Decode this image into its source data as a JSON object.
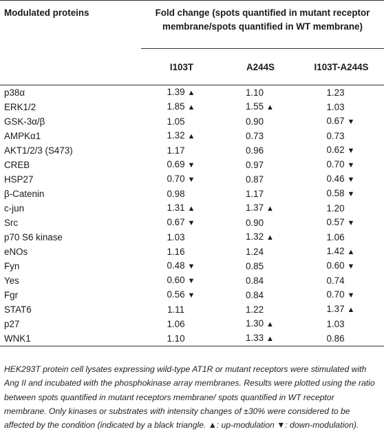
{
  "header": {
    "col0": "Modulated proteins",
    "group": "Fold change (spots quantified in mutant receptor membrane/spots quantified in WT membrane)",
    "sub": [
      "I103T",
      "A244S",
      "I103T-A244S"
    ]
  },
  "rows": [
    {
      "name": "p38α",
      "v": [
        "1.39",
        "1.10",
        "1.23"
      ],
      "m": [
        "up",
        "",
        ""
      ]
    },
    {
      "name": "ERK1/2",
      "v": [
        "1.85",
        "1.55",
        "1.03"
      ],
      "m": [
        "up",
        "up",
        ""
      ]
    },
    {
      "name": "GSK-3α/β",
      "v": [
        "1.05",
        "0.90",
        "0.67"
      ],
      "m": [
        "",
        "",
        "down"
      ]
    },
    {
      "name": "AMPKα1",
      "v": [
        "1.32",
        "0.73",
        "0.73"
      ],
      "m": [
        "up",
        "",
        ""
      ]
    },
    {
      "name": "AKT1/2/3 (S473)",
      "v": [
        "1.17",
        "0.96",
        "0.62"
      ],
      "m": [
        "",
        "",
        "down"
      ]
    },
    {
      "name": "CREB",
      "v": [
        "0.69",
        "0.97",
        "0.70"
      ],
      "m": [
        "down",
        "",
        "down"
      ]
    },
    {
      "name": "HSP27",
      "v": [
        "0.70",
        "0.87",
        "0.46"
      ],
      "m": [
        "down",
        "",
        "down"
      ]
    },
    {
      "name": "β-Catenin",
      "v": [
        "0.98",
        "1.17",
        "0.58"
      ],
      "m": [
        "",
        "",
        "down"
      ]
    },
    {
      "name": "c-jun",
      "v": [
        "1.31",
        "1.37",
        "1.20"
      ],
      "m": [
        "up",
        "up",
        ""
      ]
    },
    {
      "name": "Src",
      "v": [
        "0.67",
        "0.90",
        "0.57"
      ],
      "m": [
        "down",
        "",
        "down"
      ]
    },
    {
      "name": "p70 S6 kinase",
      "v": [
        "1.03",
        "1.32",
        "1.06"
      ],
      "m": [
        "",
        "up",
        ""
      ]
    },
    {
      "name": "eNOs",
      "v": [
        "1.16",
        "1.24",
        "1.42"
      ],
      "m": [
        "",
        "",
        "up"
      ]
    },
    {
      "name": "Fyn",
      "v": [
        "0.48",
        "0.85",
        "0.60"
      ],
      "m": [
        "down",
        "",
        "down"
      ]
    },
    {
      "name": "Yes",
      "v": [
        "0.60",
        "0.84",
        "0.74"
      ],
      "m": [
        "down",
        "",
        ""
      ]
    },
    {
      "name": "Fgr",
      "v": [
        "0.56",
        "0.84",
        "0.70"
      ],
      "m": [
        "down",
        "",
        "down"
      ]
    },
    {
      "name": "STAT6",
      "v": [
        "1.11",
        "1.22",
        "1.37"
      ],
      "m": [
        "",
        "",
        "up"
      ]
    },
    {
      "name": "p27",
      "v": [
        "1.06",
        "1.30",
        "1.03"
      ],
      "m": [
        "",
        "up",
        ""
      ]
    },
    {
      "name": "WNK1",
      "v": [
        "1.10",
        "1.33",
        "0.86"
      ],
      "m": [
        "",
        "up",
        ""
      ]
    }
  ],
  "symbols": {
    "up": "▲",
    "down": "▼"
  },
  "footnote": "HEK293T protein cell lysates expressing wild-type AT1R or mutant receptors were stimulated with Ang II and incubated with the phosphokinase array membranes. Results were plotted using the ratio between spots quantified in mutant receptors membrane/ spots quantified in WT receptor membrane. Only kinases or substrates with intensity changes of ±30% were considered to be affected by the condition (indicated by a black triangle. ▲: up-modulation ▼: down-modulation)."
}
